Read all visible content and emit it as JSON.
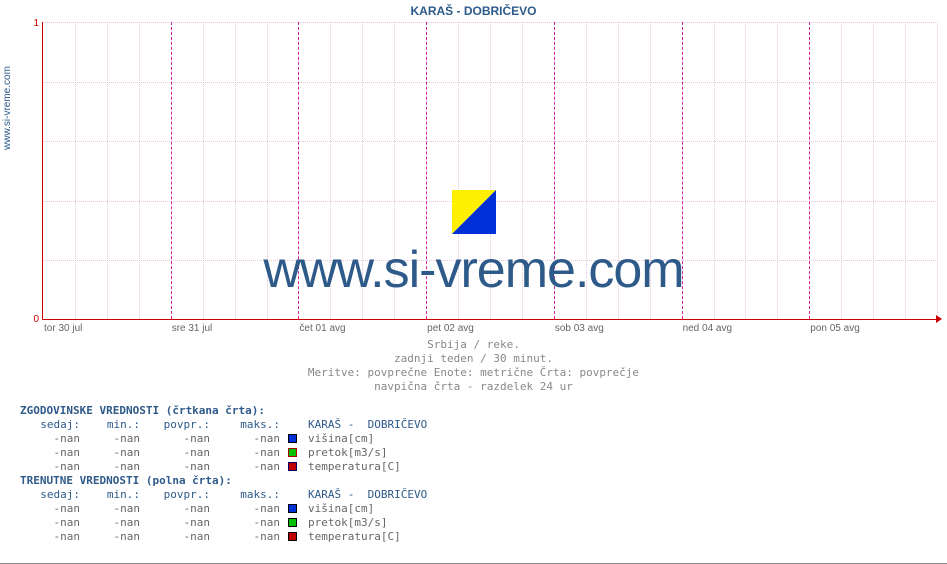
{
  "title": "KARAŠ -  DOBRIČEVO",
  "source_label": "www.si-vreme.com",
  "watermark_text": "www.si-vreme.com",
  "watermark_color": "#2e5a8a",
  "chart": {
    "type": "line",
    "ylim": [
      0,
      1
    ],
    "yticks": [
      0,
      1
    ],
    "xlabels": [
      "tor 30 jul",
      "sre 31 jul",
      "čet 01 avg",
      "pet 02 avg",
      "sob 03 avg",
      "ned 04 avg",
      "pon 05 avg"
    ],
    "day_divider_color": "#d020a0",
    "minor_grid_color": "#e6c8d8",
    "axis_color": "#c00",
    "background": "#ffffff",
    "minor_x_per_day": 4,
    "minor_y_lines": 5
  },
  "subtitle": {
    "line1": "Srbija / reke.",
    "line2": "zadnji teden / 30 minut.",
    "line3": "Meritve: povprečne  Enote: metrične  Črta: povprečje",
    "line4": "navpična črta - razdelek 24 ur"
  },
  "legend_logo": {
    "tl": "#ffef00",
    "br": "#0030d8"
  },
  "tables": {
    "col_widths": {
      "sedaj": 60,
      "min": 60,
      "povpr": 70,
      "maks": 70,
      "label": 200
    },
    "hist": {
      "header": "ZGODOVINSKE VREDNOSTI (črtkana črta):",
      "cols": [
        "sedaj:",
        "min.:",
        "povpr.:",
        "maks.:"
      ],
      "station": "KARAŠ -  DOBRIČEVO",
      "rows": [
        {
          "sw_fill": "#0030d8",
          "sw_border": "#000",
          "label": "višina[cm]",
          "v": [
            "-nan",
            "-nan",
            "-nan",
            "-nan"
          ]
        },
        {
          "sw_fill": "#00c000",
          "sw_border": "#a00",
          "label": "pretok[m3/s]",
          "v": [
            "-nan",
            "-nan",
            "-nan",
            "-nan"
          ]
        },
        {
          "sw_fill": "#c00000",
          "sw_border": "#006",
          "label": "temperatura[C]",
          "v": [
            "-nan",
            "-nan",
            "-nan",
            "-nan"
          ]
        }
      ]
    },
    "curr": {
      "header": "TRENUTNE VREDNOSTI (polna črta):",
      "cols": [
        "sedaj:",
        "min.:",
        "povpr.:",
        "maks.:"
      ],
      "station": "KARAŠ -  DOBRIČEVO",
      "rows": [
        {
          "sw_fill": "#0030d8",
          "sw_border": "#000",
          "label": "višina[cm]",
          "v": [
            "-nan",
            "-nan",
            "-nan",
            "-nan"
          ]
        },
        {
          "sw_fill": "#00c000",
          "sw_border": "#000",
          "label": "pretok[m3/s]",
          "v": [
            "-nan",
            "-nan",
            "-nan",
            "-nan"
          ]
        },
        {
          "sw_fill": "#c00000",
          "sw_border": "#000",
          "label": "temperatura[C]",
          "v": [
            "-nan",
            "-nan",
            "-nan",
            "-nan"
          ]
        }
      ]
    }
  }
}
